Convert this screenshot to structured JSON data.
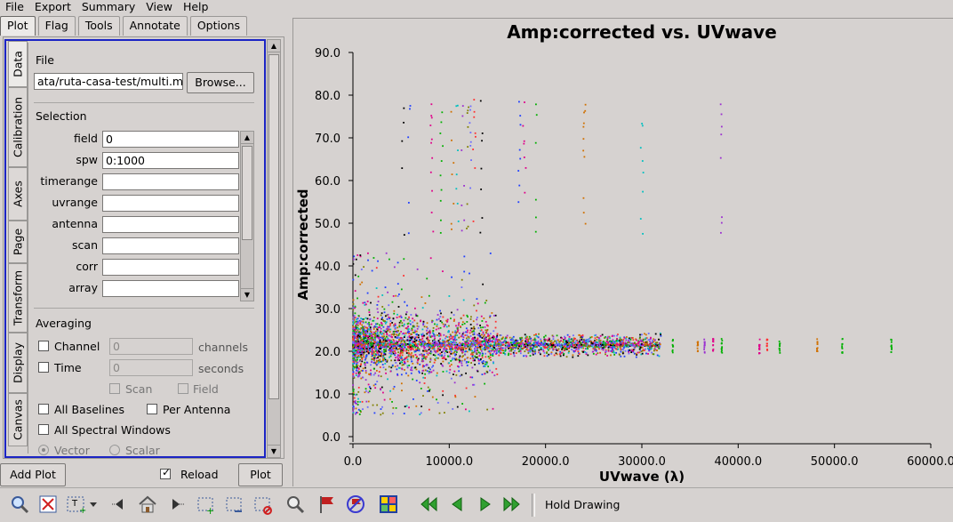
{
  "menu": [
    "File",
    "Export",
    "Summary",
    "View",
    "Help"
  ],
  "tabs": [
    "Plot",
    "Flag",
    "Tools",
    "Annotate",
    "Options"
  ],
  "vtabs": [
    "Data",
    "Calibration",
    "Axes",
    "Page",
    "Transform",
    "Display",
    "Canvas"
  ],
  "data_tab": {
    "file_label": "File",
    "file_value": "ata/ruta-casa-test/multi.ms",
    "browse": "Browse...",
    "selection_label": "Selection",
    "fields": [
      {
        "label": "field",
        "value": "0"
      },
      {
        "label": "spw",
        "value": "0:1000"
      },
      {
        "label": "timerange",
        "value": ""
      },
      {
        "label": "uvrange",
        "value": ""
      },
      {
        "label": "antenna",
        "value": ""
      },
      {
        "label": "scan",
        "value": ""
      },
      {
        "label": "corr",
        "value": ""
      },
      {
        "label": "array",
        "value": ""
      }
    ],
    "averaging_label": "Averaging",
    "channel": "Channel",
    "channel_value": "0",
    "channels_unit": "channels",
    "time": "Time",
    "time_value": "0",
    "seconds_unit": "seconds",
    "scan": "Scan",
    "field": "Field",
    "all_baselines": "All Baselines",
    "per_antenna": "Per Antenna",
    "all_spw": "All Spectral Windows",
    "vector": "Vector",
    "scalar": "Scalar"
  },
  "bottom": {
    "add_plot": "Add Plot",
    "reload": "Reload",
    "plot": "Plot"
  },
  "toolbar": {
    "hold_drawing": "Hold Drawing"
  },
  "chart_data": {
    "type": "scatter",
    "title": "Amp:corrected vs. UVwave",
    "xlabel": "UVwave (λ)",
    "ylabel": "Amp:corrected",
    "xlim": [
      0,
      60000
    ],
    "ylim": [
      0,
      90
    ],
    "xticks": [
      "0.0",
      "10000.0",
      "20000.0",
      "30000.0",
      "40000.0",
      "50000.0",
      "60000.0"
    ],
    "yticks": [
      "0.0",
      "10.0",
      "20.0",
      "30.0",
      "40.0",
      "50.0",
      "60.0",
      "70.0",
      "80.0",
      "90.0"
    ],
    "colors": [
      "#000000",
      "#1f3fff",
      "#e0008a",
      "#00b000",
      "#d07000",
      "#00c0c0",
      "#9b30d0",
      "#808000",
      "#6a6aff",
      "#ff3030"
    ],
    "groups": [
      {
        "x": [
          0,
          32000
        ],
        "y": [
          13,
          30
        ],
        "kind": "dense"
      },
      {
        "x": [
          32000,
          56000
        ],
        "y": [
          19,
          23
        ],
        "kind": "sparse"
      },
      {
        "x": [
          5000,
          38500
        ],
        "y": [
          42,
          80
        ],
        "kind": "outliers"
      },
      {
        "x": [
          0,
          15000
        ],
        "y": [
          5,
          43
        ],
        "kind": "scatter"
      }
    ]
  }
}
